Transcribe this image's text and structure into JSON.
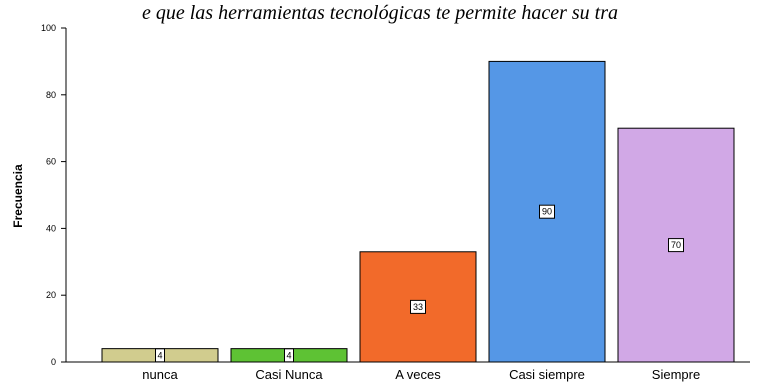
{
  "chart_data": {
    "type": "bar",
    "title": "e que las herramientas tecnológicas te permite hacer su tra",
    "xlabel": "",
    "ylabel": "Frecuencia",
    "ylim": [
      0,
      100
    ],
    "yticks": [
      "0",
      "20",
      "40",
      "60",
      "80",
      "100"
    ],
    "categories": [
      "nunca",
      "Casi Nunca",
      "A veces",
      "Casi siempre",
      "Siempre"
    ],
    "values": [
      4,
      4,
      33,
      90,
      70
    ],
    "colors": [
      "#d1cc8e",
      "#5ec234",
      "#f26a2a",
      "#5597e6",
      "#d1a8e6"
    ],
    "data_labels": [
      "4",
      "4",
      "33",
      "90",
      "70"
    ],
    "grid": false,
    "legend": "none"
  }
}
